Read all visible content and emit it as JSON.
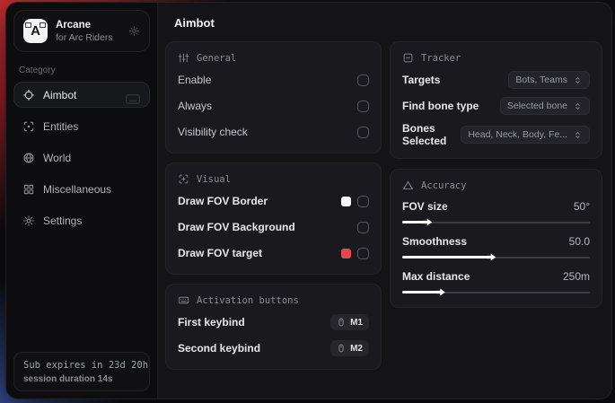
{
  "app": {
    "logo_letter": "A",
    "name": "Arcane",
    "subtitle": "for Arc Riders"
  },
  "sidebar": {
    "category_label": "Category",
    "items": [
      {
        "label": "Aimbot",
        "icon": "crosshair-icon",
        "active": true
      },
      {
        "label": "Entities",
        "icon": "scan-icon",
        "active": false
      },
      {
        "label": "World",
        "icon": "globe-icon",
        "active": false
      },
      {
        "label": "Miscellaneous",
        "icon": "grid-icon",
        "active": false
      },
      {
        "label": "Settings",
        "icon": "gear-icon",
        "active": false
      }
    ],
    "footer": {
      "sub_expiry": "Sub expires in 23d 20h",
      "session_duration": "session duration 14s"
    }
  },
  "header": {
    "title": "Aimbot"
  },
  "cards": {
    "general": {
      "title": "General",
      "icon": "sliders-icon",
      "rows": [
        {
          "label": "Enable",
          "checked": false
        },
        {
          "label": "Always",
          "checked": false
        },
        {
          "label": "Visibility check",
          "checked": false
        }
      ]
    },
    "visual": {
      "title": "Visual",
      "icon": "focus-plus-icon",
      "rows": [
        {
          "label": "Draw FOV Border",
          "swatch": "#ffffff",
          "checked": false
        },
        {
          "label": "Draw FOV Background",
          "swatch": null,
          "checked": false
        },
        {
          "label": "Draw FOV target",
          "swatch": "#e5484d",
          "checked": false
        }
      ]
    },
    "activation": {
      "title": "Activation buttons",
      "icon": "keyboard-icon",
      "rows": [
        {
          "label": "First keybind",
          "key": "M1",
          "key_icon": "mouse-icon"
        },
        {
          "label": "Second keybind",
          "key": "M2",
          "key_icon": "mouse-icon"
        }
      ]
    },
    "tracker": {
      "title": "Tracker",
      "icon": "square-minus-icon",
      "rows": [
        {
          "label": "Targets",
          "value": "Bots, Teams"
        },
        {
          "label": "Find bone type",
          "value": "Selected bone"
        },
        {
          "label": "Bones Selected",
          "value": "Head, Neck, Body, Fe..."
        }
      ]
    },
    "accuracy": {
      "title": "Accuracy",
      "icon": "triangle-icon",
      "rows": [
        {
          "label": "FOV size",
          "value": "50°",
          "percent": 13
        },
        {
          "label": "Smoothness",
          "value": "50.0",
          "percent": 47
        },
        {
          "label": "Max distance",
          "value": "250m",
          "percent": 20
        }
      ]
    }
  },
  "colors": {
    "accent_red": "#e5484d",
    "swatch_white": "#ffffff",
    "slider_fill": "#ffffff",
    "card_bg": "#1a1a1e",
    "sidebar_bg": "#0d0d10",
    "main_bg": "#141417"
  }
}
